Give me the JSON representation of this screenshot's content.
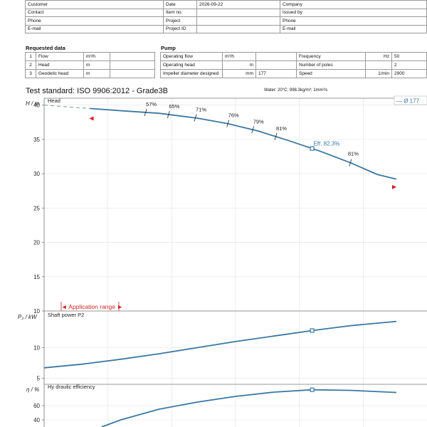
{
  "header": {
    "rows": [
      [
        "Customer",
        "Date",
        "2026-09-22",
        "Company"
      ],
      [
        "Contact",
        "Item no.",
        "",
        "Issued by"
      ],
      [
        "Phone",
        "Project",
        "",
        "Phone"
      ],
      [
        "E-mail",
        "Project ID",
        "",
        "E-mail"
      ]
    ]
  },
  "requested": {
    "title": "Requested data",
    "rows": [
      {
        "n": "1",
        "label": "Flow",
        "unit": "m³/h",
        "value": ""
      },
      {
        "n": "2",
        "label": "Head",
        "unit": "m",
        "value": ""
      },
      {
        "n": "3",
        "label": "Geodetic head",
        "unit": "m",
        "value": ""
      }
    ]
  },
  "pump": {
    "title": "Pump",
    "rows": [
      {
        "label": "Operating flow",
        "unit": "m³/h",
        "value": "",
        "label2": "Frequency",
        "unit2": "Hz",
        "value2": "50"
      },
      {
        "label": "Operating head",
        "unit": "m",
        "value": "",
        "label2": "Number of poles",
        "unit2": "",
        "value2": "2"
      },
      {
        "label": "Impeller diameter designed",
        "unit": "mm",
        "value": "177",
        "label2": "Speed",
        "unit2": "1/min",
        "value2": "2900"
      }
    ]
  },
  "test_standard": "Test standard: ISO 9906:2012 - Grade3B",
  "water": "Water: 20°C; 998.3kg/m³; 1mm²/s",
  "colors": {
    "curve": "#3a78a3",
    "marker": "#d31f1f",
    "grid": "#e2e2e2"
  },
  "chart_data": [
    {
      "type": "line",
      "title": "Head",
      "ylabel": "H / m",
      "ylim": [
        10,
        41
      ],
      "yticks": [
        10,
        15,
        20,
        25,
        30,
        35,
        40
      ],
      "xlim": [
        0,
        1
      ],
      "legend": "— Ø 177",
      "legend_position": "top-right",
      "grid": true,
      "series": [
        {
          "points": [
            [
              0.12,
              39.5
            ],
            [
              0.22,
              39.1
            ],
            [
              0.3,
              38.8
            ],
            [
              0.4,
              38.1
            ],
            [
              0.48,
              37.3
            ],
            [
              0.56,
              36.2
            ],
            [
              0.64,
              34.8
            ],
            [
              0.72,
              33.3
            ],
            [
              0.8,
              31.6
            ],
            [
              0.87,
              29.9
            ],
            [
              0.92,
              29.2
            ]
          ]
        }
      ],
      "extrapolation": [
        [
          0.0,
          40.0
        ],
        [
          0.12,
          39.5
        ]
      ],
      "efficiency_marks": [
        {
          "x": 0.265,
          "label": "57%"
        },
        {
          "x": 0.325,
          "label": "65%"
        },
        {
          "x": 0.395,
          "label": "71%"
        },
        {
          "x": 0.48,
          "label": "76%"
        },
        {
          "x": 0.545,
          "label": "79%"
        },
        {
          "x": 0.605,
          "label": "81%"
        },
        {
          "x": 0.8,
          "label": "81%"
        }
      ],
      "bep": {
        "x": 0.7,
        "label": "Eff.  82.3%"
      },
      "application_range": {
        "label": "◄ Application range ►",
        "x_min": 0.12,
        "x_max": 0.92
      }
    },
    {
      "type": "line",
      "title": "Shaft power P2",
      "ylabel": "P₂ / kW",
      "ylim": [
        4,
        16
      ],
      "yticks": [
        5,
        10
      ],
      "xlim": [
        0,
        1
      ],
      "grid": true,
      "series": [
        {
          "points": [
            [
              0.0,
              6.7
            ],
            [
              0.1,
              7.3
            ],
            [
              0.2,
              8.1
            ],
            [
              0.3,
              9.0
            ],
            [
              0.4,
              10.0
            ],
            [
              0.5,
              11.0
            ],
            [
              0.6,
              11.9
            ],
            [
              0.7,
              12.8
            ],
            [
              0.8,
              13.6
            ],
            [
              0.92,
              14.3
            ]
          ]
        }
      ],
      "bep": {
        "x": 0.7
      }
    },
    {
      "type": "line",
      "title": "Hy draulic efficiency",
      "ylabel": "η / %",
      "ylim": [
        30,
        90
      ],
      "yticks": [
        40,
        60
      ],
      "xlim": [
        0,
        1
      ],
      "grid": true,
      "series": [
        {
          "points": [
            [
              0.15,
              30
            ],
            [
              0.2,
              40
            ],
            [
              0.3,
              55
            ],
            [
              0.4,
              65
            ],
            [
              0.5,
              73
            ],
            [
              0.6,
              79
            ],
            [
              0.7,
              82.3
            ],
            [
              0.8,
              81.5
            ],
            [
              0.92,
              78.5
            ]
          ]
        }
      ],
      "bep": {
        "x": 0.7
      }
    }
  ]
}
